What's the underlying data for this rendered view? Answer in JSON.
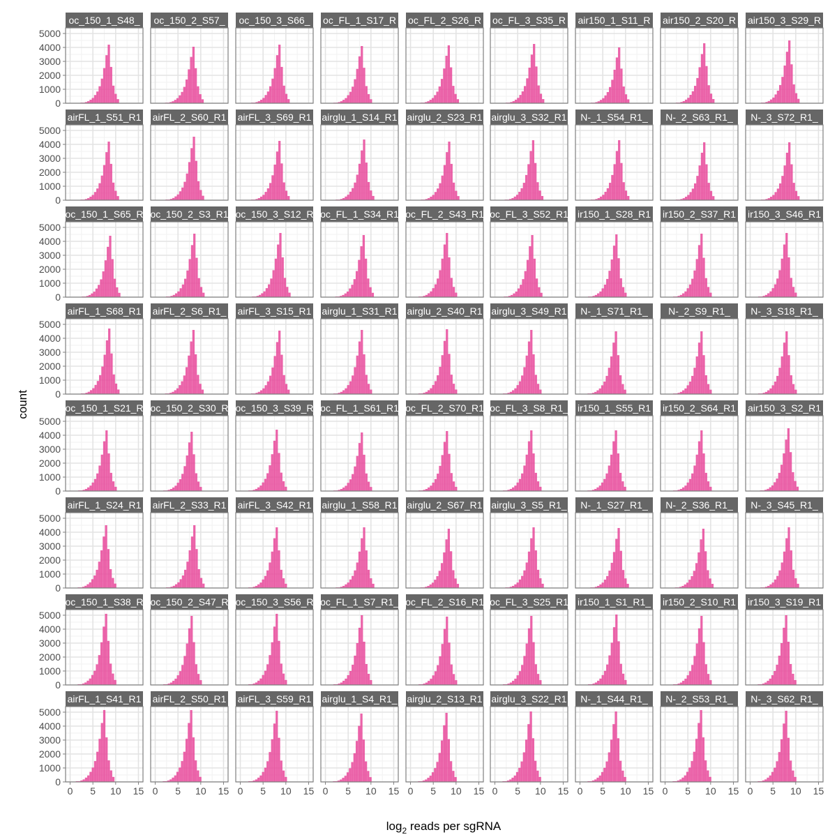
{
  "chart_data": {
    "type": "bar",
    "subtype": "faceted-histogram",
    "xlabel_main": "log",
    "xlabel_sub": "2",
    "xlabel_rest": " reads per sgRNA",
    "ylabel": "count",
    "xlim": [
      -1,
      16
    ],
    "ylim": [
      0,
      5400
    ],
    "x_ticks": [
      "0",
      "5",
      "10",
      "15"
    ],
    "y_ticks": [
      "0",
      "1000",
      "2000",
      "3000",
      "4000",
      "5000"
    ],
    "bar_color": "#e7489a",
    "panel_strip_color": "#666666",
    "grid": true,
    "bin_width": 0.5,
    "facet_rows": 8,
    "facet_cols": 9,
    "panels": [
      {
        "label": "oc_150_1_S48_",
        "peak": 8.5,
        "height": 4200
      },
      {
        "label": "oc_150_2_S57_",
        "peak": 8.4,
        "height": 4050
      },
      {
        "label": "oc_150_3_S66_",
        "peak": 8.6,
        "height": 4200
      },
      {
        "label": "oc_FL_1_S17_R",
        "peak": 8.0,
        "height": 4100
      },
      {
        "label": "oc_FL_2_S26_R",
        "peak": 8.4,
        "height": 4150
      },
      {
        "label": "oc_FL_3_S35_R",
        "peak": 8.6,
        "height": 4250
      },
      {
        "label": "air150_1_S11_R",
        "peak": 8.6,
        "height": 4000
      },
      {
        "label": "air150_2_S20_R",
        "peak": 8.6,
        "height": 4300
      },
      {
        "label": "air150_3_S29_R",
        "peak": 8.6,
        "height": 4500
      },
      {
        "label": "airFL_1_S51_R1",
        "peak": 8.5,
        "height": 4200
      },
      {
        "label": "airFL_2_S60_R1",
        "peak": 8.5,
        "height": 4550
      },
      {
        "label": "airFL_3_S69_R1",
        "peak": 8.6,
        "height": 4250
      },
      {
        "label": "airglu_1_S14_R1",
        "peak": 8.5,
        "height": 4350
      },
      {
        "label": "airglu_2_S23_R1",
        "peak": 8.5,
        "height": 4200
      },
      {
        "label": "airglu_3_S32_R1",
        "peak": 8.4,
        "height": 4300
      },
      {
        "label": "N-_1_S54_R1_",
        "peak": 8.6,
        "height": 4300
      },
      {
        "label": "N-_2_S63_R1_",
        "peak": 8.6,
        "height": 4150
      },
      {
        "label": "N-_3_S72_R1_",
        "peak": 8.6,
        "height": 4150
      },
      {
        "label": "oc_150_1_S65_R",
        "peak": 8.8,
        "height": 4400
      },
      {
        "label": "oc_150_2_S3_R1",
        "peak": 8.6,
        "height": 4550
      },
      {
        "label": "oc_150_3_S12_R",
        "peak": 8.8,
        "height": 4600
      },
      {
        "label": "oc_FL_1_S34_R1",
        "peak": 8.4,
        "height": 4450
      },
      {
        "label": "oc_FL_2_S43_R1",
        "peak": 8.0,
        "height": 4600
      },
      {
        "label": "oc_FL_3_S52_R1",
        "peak": 8.2,
        "height": 4450
      },
      {
        "label": "ir150_1_S28_R1",
        "peak": 8.0,
        "height": 4500
      },
      {
        "label": "ir150_2_S37_R1",
        "peak": 8.0,
        "height": 4550
      },
      {
        "label": "ir150_3_S46_R1",
        "peak": 8.0,
        "height": 4600
      },
      {
        "label": "airFL_1_S68_R1",
        "peak": 8.6,
        "height": 4700
      },
      {
        "label": "airFL_2_S6_R1_",
        "peak": 8.4,
        "height": 4600
      },
      {
        "label": "airFL_3_S15_R1",
        "peak": 8.6,
        "height": 4550
      },
      {
        "label": "airglu_1_S31_R1",
        "peak": 8.0,
        "height": 4600
      },
      {
        "label": "airglu_2_S40_R1",
        "peak": 8.0,
        "height": 4650
      },
      {
        "label": "airglu_3_S49_R1",
        "peak": 8.0,
        "height": 4600
      },
      {
        "label": "N-_1_S71_R1_",
        "peak": 7.9,
        "height": 4500
      },
      {
        "label": "N-_2_S9_R1_",
        "peak": 8.0,
        "height": 4500
      },
      {
        "label": "N-_3_S18_R1_",
        "peak": 8.0,
        "height": 4500
      },
      {
        "label": "oc_150_1_S21_R",
        "peak": 8.0,
        "height": 4350
      },
      {
        "label": "oc_150_2_S30_R",
        "peak": 8.0,
        "height": 4250
      },
      {
        "label": "oc_150_3_S39_R",
        "peak": 8.0,
        "height": 4400
      },
      {
        "label": "oc_FL_1_S61_R1",
        "peak": 8.0,
        "height": 4200
      },
      {
        "label": "oc_FL_2_S70_R1",
        "peak": 8.0,
        "height": 4300
      },
      {
        "label": "oc_FL_3_S8_R1_",
        "peak": 8.0,
        "height": 4350
      },
      {
        "label": "ir150_1_S55_R1",
        "peak": 7.9,
        "height": 4350
      },
      {
        "label": "ir150_2_S64_R1",
        "peak": 8.0,
        "height": 4350
      },
      {
        "label": "air150_3_S2_R1",
        "peak": 8.4,
        "height": 4500
      },
      {
        "label": "airFL_1_S24_R1",
        "peak": 7.9,
        "height": 4500
      },
      {
        "label": "airFL_2_S33_R1",
        "peak": 8.6,
        "height": 4500
      },
      {
        "label": "airFL_3_S42_R1",
        "peak": 8.0,
        "height": 4350
      },
      {
        "label": "airglu_1_S58_R1",
        "peak": 8.5,
        "height": 4350
      },
      {
        "label": "airglu_2_S67_R1",
        "peak": 8.4,
        "height": 4250
      },
      {
        "label": "airglu_3_S5_R1_",
        "peak": 8.5,
        "height": 4350
      },
      {
        "label": "N-_1_S27_R1_",
        "peak": 8.5,
        "height": 4300
      },
      {
        "label": "N-_2_S36_R1_",
        "peak": 8.4,
        "height": 4250
      },
      {
        "label": "N-_3_S45_R1_",
        "peak": 8.5,
        "height": 4350
      },
      {
        "label": "oc_150_1_S38_R",
        "peak": 7.9,
        "height": 5100
      },
      {
        "label": "oc_150_2_S47_R",
        "peak": 8.0,
        "height": 4950
      },
      {
        "label": "oc_150_3_S56_R",
        "peak": 8.0,
        "height": 5100
      },
      {
        "label": "oc_FL_1_S7_R1_",
        "peak": 8.0,
        "height": 5000
      },
      {
        "label": "oc_FL_2_S16_R1",
        "peak": 8.0,
        "height": 4900
      },
      {
        "label": "oc_FL_3_S25_R1",
        "peak": 8.0,
        "height": 4950
      },
      {
        "label": "ir150_1_S1_R1_",
        "peak": 8.0,
        "height": 5050
      },
      {
        "label": "ir150_2_S10_R1",
        "peak": 8.0,
        "height": 4950
      },
      {
        "label": "ir150_3_S19_R1",
        "peak": 7.9,
        "height": 5000
      },
      {
        "label": "airFL_1_S41_R1",
        "peak": 7.5,
        "height": 5150
      },
      {
        "label": "airFL_2_S50_R1",
        "peak": 7.9,
        "height": 5150
      },
      {
        "label": "airFL_3_S59_R1",
        "peak": 8.0,
        "height": 5100
      },
      {
        "label": "airglu_1_S4_R1_",
        "peak": 7.9,
        "height": 4900
      },
      {
        "label": "airglu_2_S13_R1",
        "peak": 7.9,
        "height": 4950
      },
      {
        "label": "airglu_3_S22_R1",
        "peak": 7.9,
        "height": 5050
      },
      {
        "label": "N-_1_S44_R1_",
        "peak": 7.9,
        "height": 5050
      },
      {
        "label": "N-_2_S53_R1_",
        "peak": 7.9,
        "height": 5150
      },
      {
        "label": "N-_3_S62_R1_",
        "peak": 7.9,
        "height": 5100
      }
    ]
  }
}
